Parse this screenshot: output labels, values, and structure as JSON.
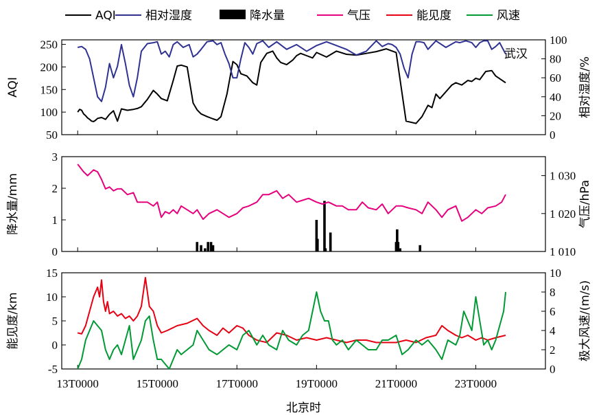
{
  "chart_data": [
    {
      "type": "line",
      "panel": "top",
      "location": "武汉",
      "ylabel_left": "AQI",
      "ylabel_right": "相对湿度/%",
      "ylim_left": [
        50,
        260
      ],
      "ylim_right": [
        0,
        100
      ],
      "yticks_left": [
        "50",
        "100",
        "150",
        "200",
        "250"
      ],
      "yticks_right": [
        "0",
        "20",
        "40",
        "60",
        "80",
        "100"
      ],
      "series": [
        {
          "name": "AQI",
          "axis": "left",
          "color": "#000000",
          "x": [
            0,
            0.1,
            0.2,
            0.3,
            0.4,
            0.5,
            0.6,
            0.7,
            0.8,
            0.9,
            1.0,
            1.2,
            1.4,
            1.6,
            1.8,
            2.0,
            2.2,
            2.5,
            2.8,
            3.0,
            3.2,
            3.5,
            3.8,
            4.0,
            4.2,
            4.5,
            4.8,
            5.0,
            5.2,
            5.5,
            5.8,
            6.0,
            6.2,
            6.5,
            6.8,
            7.0,
            7.2,
            7.5,
            7.8,
            8.0,
            8.2,
            8.5,
            8.8,
            9.0,
            9.2,
            9.5,
            9.8,
            10.0,
            10.2,
            10.5,
            10.8,
            11.0,
            11.2,
            11.5,
            11.8,
            12.0,
            12.5,
            13.0,
            13.5,
            14.0,
            14.5,
            15.0,
            15.5,
            16.0,
            16.5,
            17.0,
            17.3,
            17.6,
            17.8,
            18.0,
            18.2,
            18.5,
            18.8,
            19.0,
            19.3,
            19.6,
            19.8,
            20.0,
            20.2,
            20.5,
            20.8,
            21.0,
            21.5
          ],
          "values": [
            100,
            106,
            104,
            96,
            92,
            87,
            84,
            80,
            79,
            82,
            86,
            88,
            84,
            95,
            103,
            80,
            107,
            104,
            106,
            108,
            112,
            128,
            148,
            140,
            130,
            125,
            170,
            202,
            204,
            200,
            120,
            105,
            96,
            90,
            85,
            82,
            90,
            140,
            212,
            205,
            185,
            180,
            165,
            160,
            210,
            230,
            235,
            220,
            210,
            205,
            215,
            225,
            230,
            225,
            220,
            232,
            222,
            235,
            228,
            226,
            230,
            234,
            240,
            232,
            80,
            75,
            90,
            115,
            110,
            140,
            130,
            145,
            160,
            165,
            160,
            170,
            168,
            175,
            172,
            190,
            192,
            180,
            165
          ]
        },
        {
          "name": "相对湿度",
          "axis": "right",
          "color": "#2e3192",
          "x": [
            0,
            0.2,
            0.4,
            0.6,
            0.8,
            1.0,
            1.2,
            1.4,
            1.6,
            1.8,
            2.0,
            2.2,
            2.4,
            2.6,
            2.8,
            3.0,
            3.2,
            3.5,
            3.8,
            4.0,
            4.2,
            4.4,
            4.6,
            4.8,
            5.0,
            5.3,
            5.6,
            5.8,
            6.0,
            6.2,
            6.5,
            6.8,
            7.0,
            7.2,
            7.4,
            7.6,
            7.8,
            8.0,
            8.2,
            8.4,
            8.6,
            8.8,
            9.0,
            9.3,
            9.6,
            10.0,
            10.5,
            11.0,
            11.5,
            12.0,
            12.5,
            13.0,
            13.5,
            14.0,
            14.5,
            15.0,
            15.3,
            15.6,
            15.8,
            16.0,
            16.2,
            16.4,
            16.6,
            16.8,
            17.0,
            17.2,
            17.4,
            17.6,
            18.0,
            18.5,
            19.0,
            19.2,
            19.5,
            19.8,
            20.0,
            20.2,
            20.4,
            20.6,
            20.8,
            21.0,
            21.2,
            21.5
          ],
          "values": [
            92,
            93,
            90,
            80,
            60,
            40,
            35,
            50,
            75,
            60,
            72,
            95,
            75,
            52,
            40,
            60,
            88,
            96,
            97,
            98,
            85,
            88,
            82,
            95,
            98,
            92,
            95,
            82,
            85,
            90,
            98,
            99,
            95,
            97,
            85,
            75,
            60,
            60,
            80,
            97,
            92,
            85,
            96,
            99,
            92,
            98,
            90,
            95,
            88,
            94,
            98,
            94,
            90,
            84,
            88,
            99,
            93,
            96,
            95,
            92,
            85,
            70,
            60,
            85,
            98,
            98,
            97,
            90,
            99,
            92,
            98,
            97,
            99,
            97,
            92,
            97,
            99,
            99,
            90,
            93,
            97,
            85
          ]
        }
      ]
    },
    {
      "type": "line",
      "panel": "middle",
      "ylabel_left": "降水量/mm",
      "ylabel_right": "气压/hPa",
      "ylim_left": [
        0,
        3
      ],
      "ylim_right": [
        1010,
        1035
      ],
      "yticks_left": [
        "0",
        "1",
        "2",
        "3"
      ],
      "yticks_right": [
        "1 010",
        "1 020",
        "1 030"
      ],
      "series": [
        {
          "name": "降水量",
          "axis": "left",
          "color": "#000000",
          "style": "bar",
          "x": [
            6.0,
            6.2,
            6.4,
            6.55,
            6.7,
            6.8,
            12.0,
            12.05,
            12.4,
            12.45,
            12.7,
            16.0,
            16.05,
            16.1,
            16.2,
            17.2
          ],
          "values": [
            0.3,
            0.2,
            0.1,
            0.3,
            0.3,
            0.2,
            1.0,
            0.4,
            1.6,
            0.1,
            0.6,
            0.3,
            0.7,
            0.3,
            0.1,
            0.2
          ]
        },
        {
          "name": "气压",
          "axis": "right",
          "color": "#e6007e",
          "x": [
            0,
            0.3,
            0.5,
            0.8,
            1.0,
            1.2,
            1.4,
            1.6,
            1.8,
            2.0,
            2.2,
            2.5,
            2.8,
            3.0,
            3.2,
            3.5,
            3.8,
            4.0,
            4.2,
            4.4,
            4.6,
            4.8,
            5.0,
            5.2,
            5.5,
            5.8,
            6.0,
            6.3,
            6.6,
            7.0,
            7.3,
            7.6,
            8.0,
            8.3,
            8.6,
            9.0,
            9.3,
            9.6,
            10.0,
            10.3,
            10.6,
            11.0,
            11.3,
            11.6,
            12.0,
            12.3,
            12.6,
            13.0,
            13.3,
            13.6,
            14.0,
            14.3,
            14.6,
            15.0,
            15.3,
            15.6,
            16.0,
            16.3,
            16.6,
            17.0,
            17.3,
            17.6,
            18.0,
            18.3,
            18.6,
            19.0,
            19.3,
            19.6,
            20.0,
            20.3,
            20.6,
            21.0,
            21.3,
            21.5
          ],
          "values": [
            1033,
            1031,
            1030,
            1031.5,
            1031,
            1029,
            1026.5,
            1027,
            1026,
            1026.5,
            1026.5,
            1025,
            1025.5,
            1023,
            1023,
            1023,
            1022,
            1023,
            1019,
            1020.5,
            1020,
            1021,
            1020,
            1022,
            1021,
            1020,
            1021,
            1018.5,
            1020,
            1021,
            1020,
            1019,
            1020,
            1021.5,
            1022,
            1023,
            1025,
            1025,
            1026,
            1024,
            1025,
            1023,
            1023.5,
            1024,
            1023,
            1022.5,
            1023,
            1022,
            1022,
            1021,
            1021,
            1023,
            1021.5,
            1021,
            1022.5,
            1020,
            1022,
            1022,
            1021.5,
            1021,
            1020,
            1023,
            1021,
            1019,
            1021,
            1022,
            1018,
            1019,
            1021,
            1020,
            1021.5,
            1022,
            1023,
            1025
          ]
        }
      ]
    },
    {
      "type": "line",
      "panel": "bottom",
      "ylabel_left": "能见度/km",
      "ylabel_right": "极大风速/(m/s)",
      "ylim_left": [
        -5,
        15
      ],
      "ylim_right": [
        0,
        10
      ],
      "yticks_left": [
        "-5",
        "0",
        "5",
        "10",
        "15"
      ],
      "yticks_right": [
        "0",
        "2",
        "4",
        "6",
        "8",
        "10"
      ],
      "series": [
        {
          "name": "能见度",
          "axis": "left",
          "color": "#e60012",
          "x": [
            0,
            0.2,
            0.4,
            0.6,
            0.8,
            1.0,
            1.1,
            1.2,
            1.3,
            1.4,
            1.5,
            1.6,
            1.8,
            2.0,
            2.2,
            2.4,
            2.6,
            2.8,
            3.0,
            3.2,
            3.4,
            3.5,
            3.6,
            3.8,
            4.0,
            4.2,
            4.5,
            5.0,
            5.5,
            6.0,
            6.3,
            6.6,
            7.0,
            7.3,
            7.6,
            8.0,
            8.3,
            8.6,
            9.0,
            9.5,
            10.0,
            10.5,
            11.0,
            11.5,
            12.0,
            12.5,
            13.0,
            13.5,
            14.0,
            14.5,
            15.0,
            15.5,
            16.0,
            16.5,
            17.0,
            17.5,
            18.0,
            18.3,
            18.6,
            19.0,
            19.3,
            19.6,
            20.0,
            20.3,
            20.6,
            21.0,
            21.5
          ],
          "values": [
            2.5,
            2.3,
            4,
            7,
            10,
            12,
            10,
            13.5,
            9,
            7,
            9,
            6.5,
            7,
            6,
            6.5,
            5.5,
            6,
            5,
            6,
            8,
            14,
            11,
            8,
            7,
            4,
            2.5,
            3,
            4,
            4.5,
            5.5,
            4,
            3,
            2,
            3.5,
            2.5,
            4,
            3.5,
            2,
            1,
            0.5,
            2.5,
            2,
            1,
            1.5,
            1,
            1.5,
            1,
            0.5,
            1,
            1,
            0.5,
            0.5,
            0.5,
            1,
            0.5,
            1.5,
            2,
            4,
            3,
            2,
            1.5,
            2,
            1,
            1.5,
            1,
            1.5,
            2
          ]
        },
        {
          "name": "风速",
          "axis": "right",
          "color": "#009933",
          "x": [
            0,
            0.2,
            0.4,
            0.6,
            0.8,
            1.0,
            1.2,
            1.4,
            1.6,
            1.8,
            2.0,
            2.2,
            2.4,
            2.6,
            2.8,
            3.0,
            3.2,
            3.4,
            3.6,
            3.8,
            4.0,
            4.2,
            4.4,
            4.6,
            4.8,
            5.0,
            5.2,
            5.5,
            5.8,
            6.0,
            6.3,
            6.6,
            7.0,
            7.3,
            7.6,
            8.0,
            8.3,
            8.6,
            9.0,
            9.3,
            9.6,
            10.0,
            10.3,
            10.6,
            11.0,
            11.3,
            11.6,
            12.0,
            12.2,
            12.4,
            12.6,
            12.8,
            13.0,
            13.3,
            13.6,
            14.0,
            14.3,
            14.6,
            15.0,
            15.3,
            15.6,
            16.0,
            16.3,
            16.6,
            17.0,
            17.3,
            17.6,
            18.0,
            18.3,
            18.6,
            19.0,
            19.2,
            19.4,
            19.6,
            19.8,
            20.0,
            20.2,
            20.4,
            20.6,
            20.8,
            21.0,
            21.2,
            21.4,
            21.5
          ],
          "values": [
            0,
            1,
            3,
            4,
            5,
            4.5,
            4,
            2,
            1,
            2,
            2.5,
            1.5,
            3,
            4.5,
            1,
            2,
            3,
            5,
            5.5,
            3,
            1,
            1,
            0.5,
            0,
            1,
            2,
            1.5,
            2,
            2.5,
            4,
            3,
            2,
            1.5,
            2,
            2.5,
            2,
            3.5,
            4,
            2.5,
            3.5,
            2.5,
            2,
            4,
            3,
            2.5,
            3.5,
            4,
            8,
            6,
            5,
            5,
            3,
            2.5,
            3,
            2,
            3,
            2.5,
            2,
            2,
            3,
            3,
            3.5,
            1.5,
            2,
            3,
            2.5,
            3,
            2,
            1,
            3,
            2.5,
            3.5,
            6,
            5,
            4,
            7.5,
            5,
            2.5,
            3,
            2,
            3,
            4.5,
            6,
            8
          ]
        }
      ]
    }
  ],
  "xaxis": {
    "label": "北京时",
    "ticks": [
      "13T0000",
      "15T0000",
      "17T0000",
      "19T0000",
      "21T0000",
      "23T0000"
    ],
    "tick_days": [
      0,
      4,
      8,
      12,
      16,
      20
    ],
    "range_days": [
      -0.8,
      23.5
    ]
  },
  "legend": {
    "placement": "top",
    "items": [
      {
        "name": "AQI",
        "color": "#000000",
        "style": "line"
      },
      {
        "name": "相对湿度",
        "color": "#2e3192",
        "style": "line"
      },
      {
        "name": "降水量",
        "color": "#000000",
        "style": "box"
      },
      {
        "name": "气压",
        "color": "#e6007e",
        "style": "line"
      },
      {
        "name": "能见度",
        "color": "#e60012",
        "style": "line"
      },
      {
        "name": "风速",
        "color": "#009933",
        "style": "line"
      }
    ]
  }
}
